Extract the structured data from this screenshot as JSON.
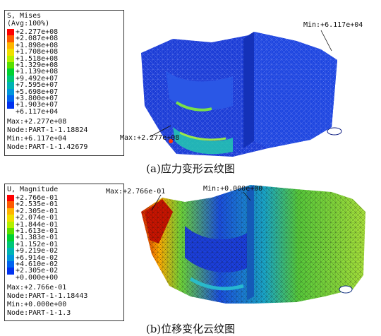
{
  "panel_a": {
    "legend": {
      "title": "S, Mises",
      "subtitle": "(Avg:100%)",
      "values": [
        "+2.277e+08",
        "+2.087e+08",
        "+1.898e+08",
        "+1.708e+08",
        "+1.518e+08",
        "+1.329e+08",
        "+1.139e+08",
        "+9.492e+07",
        "+7.595e+07",
        "+5.698e+07",
        "+3.800e+07",
        "+1.903e+07",
        "+6.117e+04"
      ],
      "max": "Max:+2.277e+08",
      "max_node": "Node:PART-1-1.18824",
      "min": "Min:+6.117e+04",
      "min_node": "Node:PART-1-1.42679"
    },
    "annotation_min": "Min:+6.117e+04",
    "annotation_max": "Max:+2.277e+08",
    "caption": "(a)应力变形云纹图"
  },
  "panel_b": {
    "legend": {
      "title": "U, Magnitude",
      "values": [
        "+2.766e-01",
        "+2.535e-01",
        "+2.305e-01",
        "+2.074e-01",
        "+1.844e-01",
        "+1.613e-01",
        "+1.383e-01",
        "+1.152e-01",
        "+9.219e-02",
        "+6.914e-02",
        "+4.610e-02",
        "+2.305e-02",
        "+0.000e+00"
      ],
      "max": "Max:+2.766e-01",
      "max_node": "Node:PART-1-1.18443",
      "min": "Min:+0.000e+00",
      "min_node": "Node:PART-1-1.3"
    },
    "annotation_max": "Max:+2.766e-01",
    "annotation_min": "Min:+0.000e+00",
    "caption": "(b)位移变化云纹图"
  },
  "colors": {
    "scale": [
      "#ff0000",
      "#ff5a00",
      "#ffb400",
      "#f0e000",
      "#b4f000",
      "#5ae000",
      "#00d232",
      "#00c878",
      "#00b4b4",
      "#0096dc",
      "#0064f0",
      "#0032f0",
      "#0000e6"
    ],
    "mesh_blue": "#1a3fd8",
    "mesh_green": "#5ccb3a"
  }
}
